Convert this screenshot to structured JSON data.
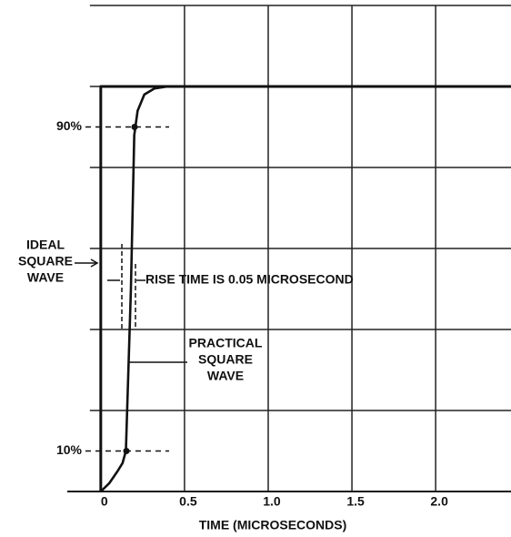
{
  "chart_data": {
    "type": "line",
    "x_label": "TIME (MICROSECONDS)",
    "xlim": [
      -0.2,
      2.45
    ],
    "ylim": [
      0,
      120
    ],
    "xticks": [
      0,
      0.5,
      {
        "value": 1,
        "label": "1.0"
      },
      1.5,
      {
        "value": 2,
        "label": "2.0"
      }
    ],
    "yticks": [
      {
        "value": 10,
        "label": "10%"
      },
      {
        "value": 90,
        "label": "90%"
      }
    ],
    "ygrid": [
      20,
      40,
      60,
      80,
      100,
      120
    ],
    "grid": true,
    "series": [
      {
        "color": "#111111",
        "x": [
          0,
          0,
          2.45
        ],
        "values": [
          0,
          100,
          100
        ]
      },
      {
        "color": "#111111",
        "x": [
          0,
          0.05,
          0.1,
          0.13,
          0.15,
          0.18,
          0.2,
          0.22,
          0.26,
          0.32,
          0.4,
          2.45
        ],
        "values": [
          0,
          2,
          5,
          7,
          10,
          50,
          88,
          94,
          98,
          99.5,
          100,
          100
        ]
      }
    ],
    "annotations": [
      {
        "lines": [
          "IDEAL",
          "SQUARE",
          "WAVE"
        ]
      },
      {
        "lines": [
          "RISE TIME IS 0.05 MICROSECOND"
        ]
      },
      {
        "lines": [
          "PRACTICAL",
          "SQUARE",
          "WAVE"
        ]
      }
    ]
  }
}
